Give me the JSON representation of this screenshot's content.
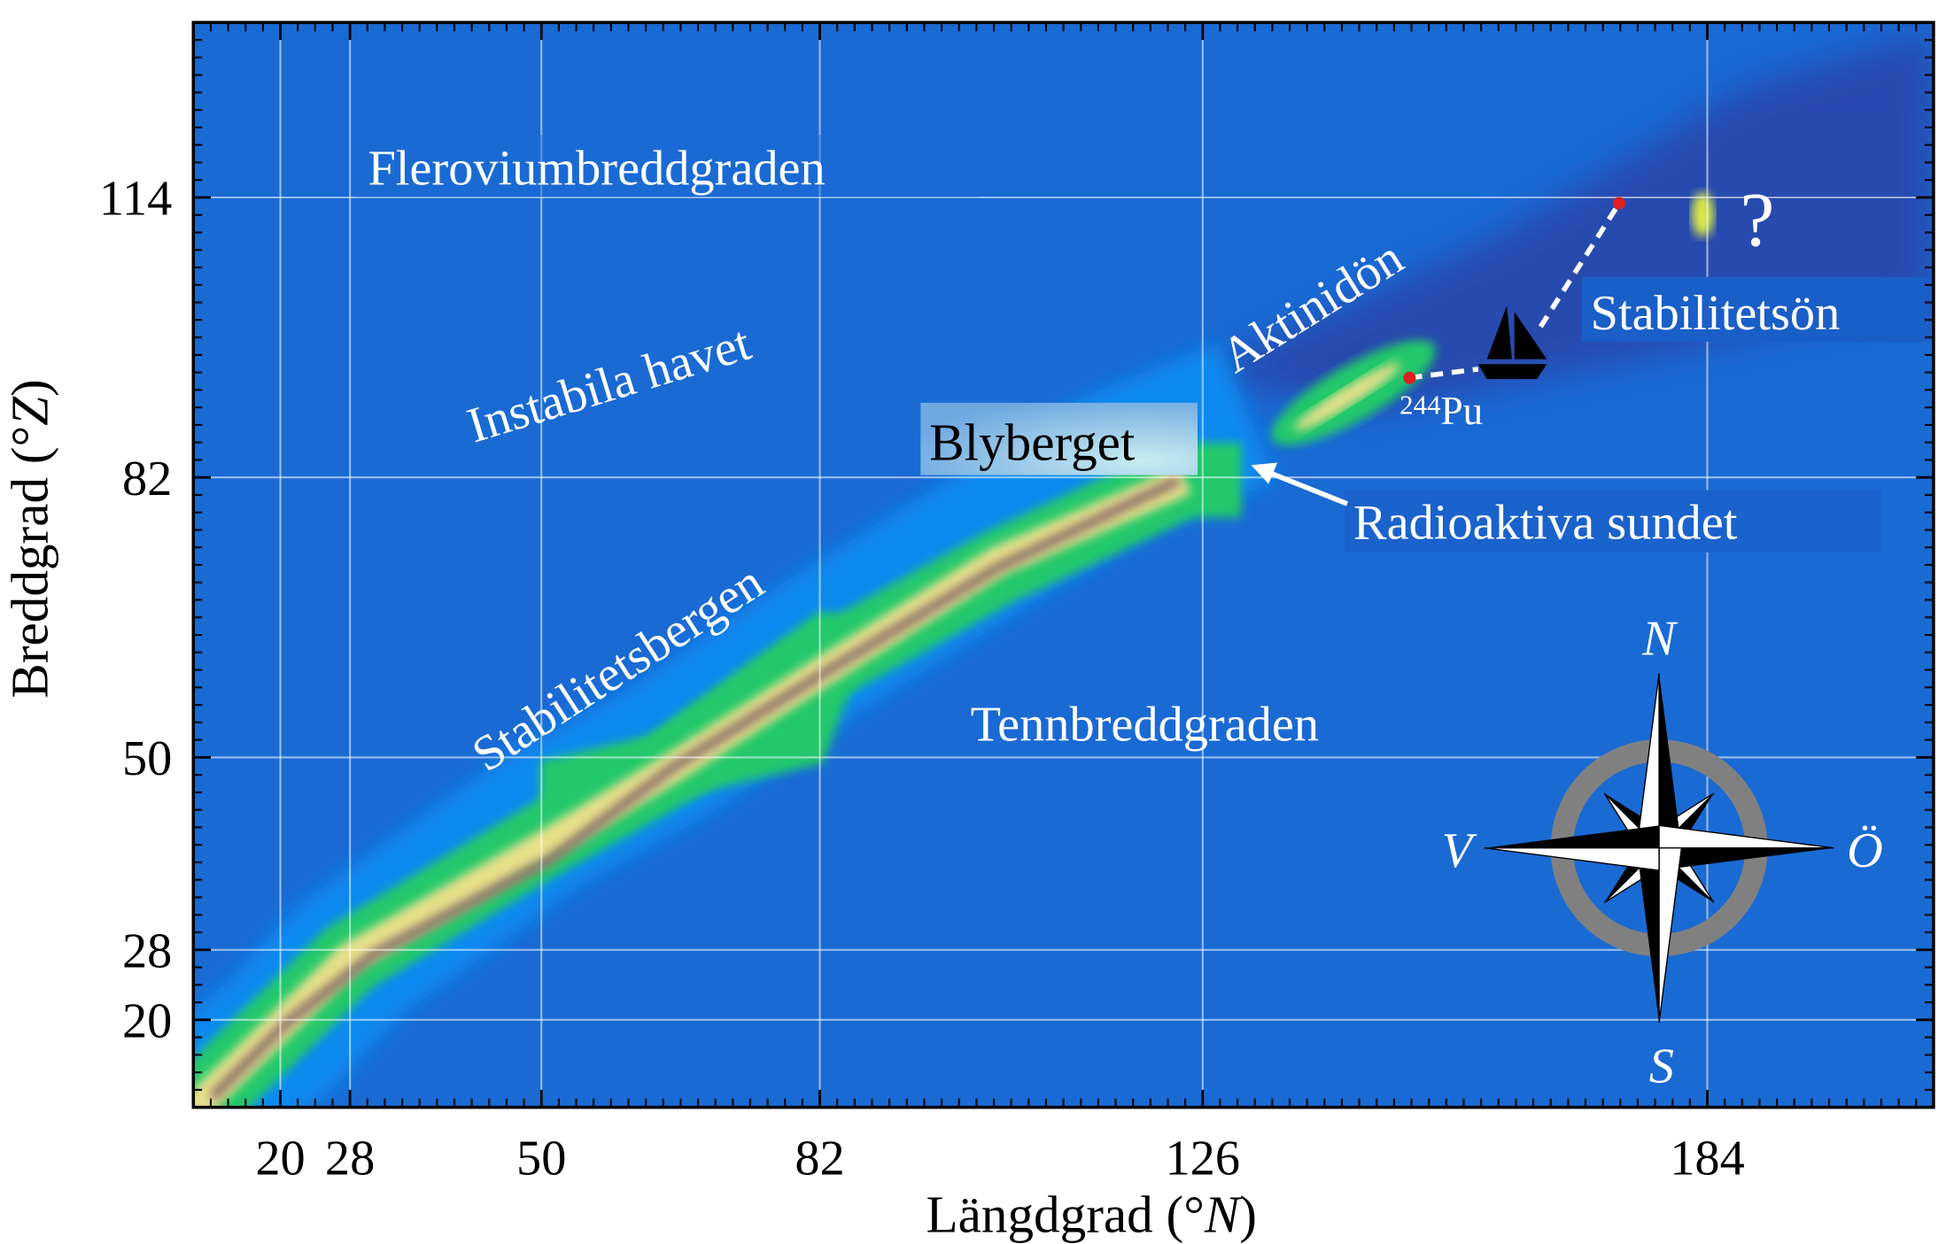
{
  "axes": {
    "xlabel": "Längdgrad (°N)",
    "xlabel_main": "Längdgrad (°",
    "xlabel_var": "N",
    "xlabel_close": ")",
    "ylabel_main": "Breddgrad (°",
    "ylabel_var": "Z",
    "ylabel_close": ")",
    "x_ticks": [
      "20",
      "28",
      "50",
      "82",
      "126",
      "184"
    ],
    "y_ticks": [
      "114",
      "82",
      "50",
      "28",
      "20"
    ],
    "x_tick_values": [
      20,
      28,
      50,
      82,
      126,
      184
    ],
    "y_tick_values": [
      114,
      82,
      50,
      28,
      20
    ],
    "xlim": [
      10,
      210
    ],
    "ylim": [
      10,
      134
    ],
    "grid": true
  },
  "regions": {
    "flerovium": "Fleroviumbreddgraden",
    "unstable_sea": "Instabila havet",
    "actinide_island": "Aktinidön",
    "stability_island": "Stabilitetsön",
    "question": "?",
    "lead_mountain": "Blyberget",
    "strait": "Radioaktiva sundet",
    "stability_mountains": "Stabilitetsbergen",
    "tin_latitude": "Tennbreddgraden",
    "pu_mass": "244",
    "pu_symbol": "Pu"
  },
  "compass": {
    "north": "N",
    "south": "S",
    "west": "V",
    "east": "Ö"
  },
  "colors": {
    "sea": "#1a6ad4",
    "shallow": "#0a8af0",
    "land": "#22c86a",
    "highland": "#e8e08a",
    "peak": "#8a6e6a",
    "deep": "#2a45a8"
  }
}
